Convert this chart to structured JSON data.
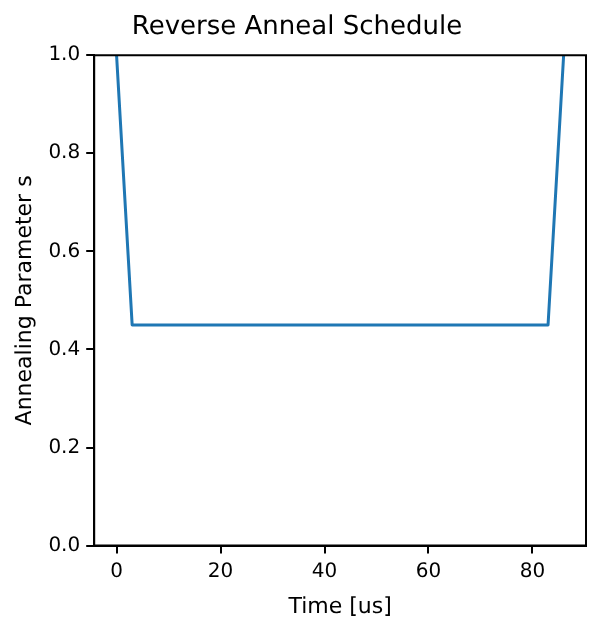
{
  "chart_data": {
    "type": "line",
    "title": "Reverse Anneal Schedule",
    "xlabel": "Time [us]",
    "ylabel": "Annealing Parameter s",
    "x": [
      0,
      3,
      83,
      86
    ],
    "series": [
      {
        "color": "#1f77b4",
        "values": [
          1,
          0.45,
          0.45,
          1
        ]
      }
    ],
    "xlim": [
      -4.3,
      90.3
    ],
    "xticks": [
      0,
      20,
      40,
      60,
      80
    ],
    "ylim": [
      0,
      1
    ],
    "yticks": [
      {
        "value": 0,
        "label": "0.0"
      },
      {
        "value": 0.2,
        "label": "0.2"
      },
      {
        "value": 0.4,
        "label": "0.4"
      },
      {
        "value": 0.6,
        "label": "0.6"
      },
      {
        "value": 0.8,
        "label": "0.8"
      },
      {
        "value": 1,
        "label": "1.0"
      }
    ],
    "grid": false,
    "legend": false
  }
}
